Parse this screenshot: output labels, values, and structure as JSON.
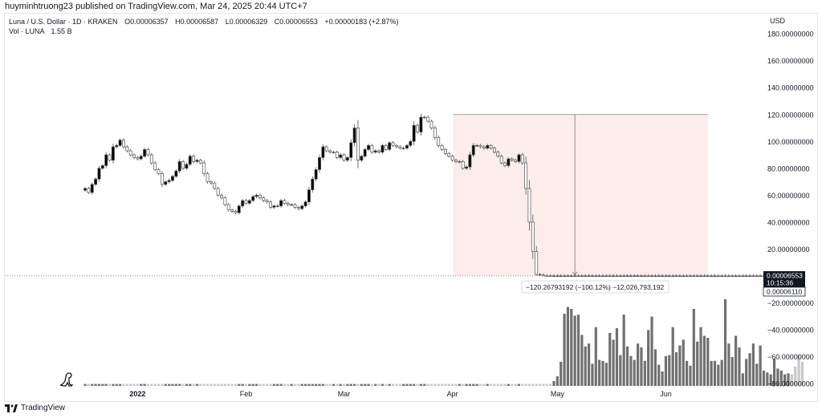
{
  "publish_line": "huyminhtruong23 published on TradingView.com, Mar 24, 2025 20:44 UTC+7",
  "legend": {
    "symbol": "Luna / U.S. Dollar · 1D · KRAKEN",
    "open": "O0.00006357",
    "high": "H0.00006587",
    "low": "L0.00006329",
    "close": "C0.00006553",
    "change": "+0.00000183 (+2.87%)",
    "volume_label": "Vol · LUNA",
    "volume_value": "1.55 B"
  },
  "currency": "USD",
  "brand": "TradingView",
  "measure_label": "−120.26793192 (−100.12%) −12,026,793,192",
  "price_badge": {
    "price": "0.00006553",
    "countdown": "10:15:36",
    "low_value": "0.00006110"
  },
  "colors": {
    "up": "#000000",
    "down": "#ffffff",
    "candle_border": "#555555",
    "measure_fill": "#fdecec",
    "vol_dark": "#707070",
    "vol_light": "#c8c8c8"
  },
  "chart_data": {
    "type": "candlestick",
    "y_ticks": [
      180,
      160,
      140,
      120,
      100,
      80,
      60,
      40,
      20,
      -20,
      -40,
      -60,
      -80
    ],
    "y_tick_labels": [
      "180.00000000",
      "160.00000000",
      "140.00000000",
      "120.00000000",
      "100.00000000",
      "80.00000000",
      "60.00000000",
      "40.00000000",
      "20.00000000",
      "−20.00000000",
      "−40.00000000",
      "−60.00000000",
      "−80.00000000"
    ],
    "x_labels": [
      {
        "label": "2022",
        "day": 0
      },
      {
        "label": "Feb",
        "day": 31
      },
      {
        "label": "Mar",
        "day": 59
      },
      {
        "label": "Apr",
        "day": 90
      },
      {
        "label": "May",
        "day": 120
      },
      {
        "label": "Jun",
        "day": 151
      }
    ],
    "start_offset_days": -15,
    "candles_close": [
      65,
      62,
      68,
      72,
      80,
      82,
      90,
      86,
      96,
      97,
      101,
      96,
      93,
      90,
      88,
      87,
      89,
      94,
      90,
      84,
      79,
      76,
      68,
      70,
      71,
      74,
      78,
      85,
      80,
      83,
      89,
      85,
      86,
      84,
      76,
      70,
      69,
      65,
      60,
      58,
      53,
      49,
      48,
      47,
      52,
      56,
      54,
      56,
      59,
      60,
      58,
      56,
      55,
      51,
      52,
      52,
      56,
      54,
      53,
      53,
      51,
      50,
      52,
      55,
      64,
      72,
      79,
      88,
      96,
      93,
      92,
      92,
      88,
      90,
      86,
      88,
      99,
      110,
      86,
      89,
      94,
      97,
      92,
      93,
      92,
      97,
      94,
      99,
      97,
      96,
      95,
      95,
      97,
      100,
      112,
      107,
      118,
      118,
      115,
      110,
      103,
      97,
      94,
      91,
      89,
      86,
      85,
      85,
      80,
      81,
      90,
      97,
      97,
      96,
      95,
      97,
      95,
      92,
      89,
      84,
      82,
      87,
      86,
      85,
      90,
      84,
      65,
      40,
      18,
      1,
      0.6,
      0.0004,
      0.0002,
      0.0001,
      0.0001,
      0.0001,
      0.0001,
      0.0001,
      0.0001,
      0.0001,
      0.0001,
      0.0001,
      0.0001,
      0.0001,
      0.0001,
      0.0001,
      0.0001,
      0.0001,
      0.0001,
      0.0001,
      0.0001,
      0.0001,
      0.0001,
      0.0001,
      0.0001,
      0.0001,
      0.0001,
      0.0001,
      0.0001,
      0.0001,
      0.0001,
      0.0001,
      0.0001,
      0.0001,
      0.0001,
      0.0001,
      0.0001,
      0.0001,
      0.0001,
      0.0001,
      0.0001,
      0.0001,
      0.0001,
      0.0001,
      0.0001,
      0.0001,
      0.0001,
      0.0001,
      0.0001,
      0.0001,
      0.0001,
      0.0001,
      0.0001,
      0.0001,
      0.0001,
      0.0001,
      0.0001,
      0.0001,
      0.0001,
      0.0001,
      0.0001,
      0.0001,
      0.0001,
      0.0001,
      0.0001,
      0.0001,
      0.0001,
      0.0001,
      0.0001,
      0.0001,
      0.0001,
      0.0001
    ],
    "volume_relative": [
      0.02,
      0.02,
      0.02,
      0.02,
      0.02,
      0.02,
      0.02,
      0.02,
      0.02,
      0.02,
      0.02,
      0.02,
      0.02,
      0.02,
      0.02,
      0.02,
      0.02,
      0.02,
      0.02,
      0.02,
      0.02,
      0.02,
      0.02,
      0.02,
      0.02,
      0.02,
      0.02,
      0.02,
      0.02,
      0.02,
      0.02,
      0.02,
      0.02,
      0.02,
      0.02,
      0.02,
      0.02,
      0.02,
      0.02,
      0.02,
      0.02,
      0.02,
      0.02,
      0.02,
      0.02,
      0.02,
      0.02,
      0.02,
      0.02,
      0.02,
      0.02,
      0.02,
      0.02,
      0.02,
      0.02,
      0.02,
      0.02,
      0.02,
      0.02,
      0.02,
      0.02,
      0.02,
      0.02,
      0.02,
      0.02,
      0.02,
      0.02,
      0.02,
      0.02,
      0.02,
      0.02,
      0.02,
      0.02,
      0.02,
      0.02,
      0.02,
      0.02,
      0.02,
      0.02,
      0.02,
      0.02,
      0.02,
      0.02,
      0.02,
      0.02,
      0.02,
      0.02,
      0.02,
      0.02,
      0.02,
      0.02,
      0.02,
      0.02,
      0.02,
      0.02,
      0.02,
      0.02,
      0.02,
      0.02,
      0.02,
      0.02,
      0.02,
      0.02,
      0.02,
      0.02,
      0.02,
      0.02,
      0.02,
      0.02,
      0.02,
      0.02,
      0.02,
      0.02,
      0.02,
      0.02,
      0.02,
      0.02,
      0.02,
      0.02,
      0.02,
      0.02,
      0.02,
      0.02,
      0.02,
      0.02,
      0.02,
      0.02,
      0.02,
      0.02,
      0.02,
      0.02,
      0.02,
      0.02,
      0.02,
      0.05,
      0.1,
      0.25,
      0.75,
      0.82,
      0.8,
      0.73,
      0.74,
      0.53,
      0.41,
      0.44,
      0.23,
      0.61,
      0.27,
      0.26,
      0.24,
      0.55,
      0.48,
      0.6,
      0.32,
      0.74,
      0.41,
      0.31,
      0.27,
      0.44,
      0.4,
      0.26,
      0.58,
      0.72,
      0.38,
      0.22,
      0.15,
      0.31,
      0.32,
      0.61,
      0.35,
      0.42,
      0.48,
      0.26,
      0.21,
      0.8,
      0.46,
      0.61,
      0.52,
      0.5,
      0.26,
      0.26,
      0.22,
      0.27,
      0.9,
      0.44,
      0.3,
      0.52,
      0.4,
      0.13,
      0.28,
      0.34,
      0.44,
      0.23,
      0.42,
      0.16,
      0.14,
      0.12,
      0.28,
      0.18,
      0.16,
      0.12,
      0.13,
      0.12,
      0.2,
      0.32,
      0.25
    ],
    "measure": {
      "from_day": 90,
      "to_day": 163,
      "top_value": 120,
      "bottom_value": 0,
      "marker_day": 125
    }
  }
}
